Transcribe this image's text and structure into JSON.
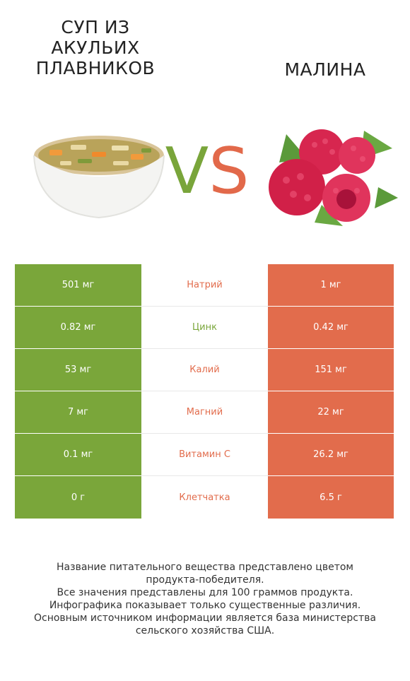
{
  "header": {
    "left_title": "СУП ИЗ АКУЛЬИХ ПЛАВНИКОВ",
    "right_title": "МАЛИНА",
    "vs_v": "V",
    "vs_s": "S"
  },
  "colors": {
    "left_accent": "#7aa63a",
    "right_accent": "#e26c4c"
  },
  "rows": [
    {
      "left": "501 мг",
      "nutrient": "Натрий",
      "right": "1 мг",
      "winner": "right"
    },
    {
      "left": "0.82 мг",
      "nutrient": "Цинк",
      "right": "0.42 мг",
      "winner": "left"
    },
    {
      "left": "53 мг",
      "nutrient": "Калий",
      "right": "151 мг",
      "winner": "right"
    },
    {
      "left": "7 мг",
      "nutrient": "Магний",
      "right": "22 мг",
      "winner": "right"
    },
    {
      "left": "0.1 мг",
      "nutrient": "Витамин C",
      "right": "26.2 мг",
      "winner": "right"
    },
    {
      "left": "0 г",
      "nutrient": "Клетчатка",
      "right": "6.5 г",
      "winner": "right"
    }
  ],
  "footer": {
    "line1": "Название питательного вещества представлено цветом",
    "line2": "продукта-победителя.",
    "line3": "Все значения представлены для 100 граммов продукта.",
    "line4": "Инфографика показывает только существенные различия.",
    "line5": "Основным источником информации является база министерства",
    "line6": "сельского хозяйства США."
  }
}
